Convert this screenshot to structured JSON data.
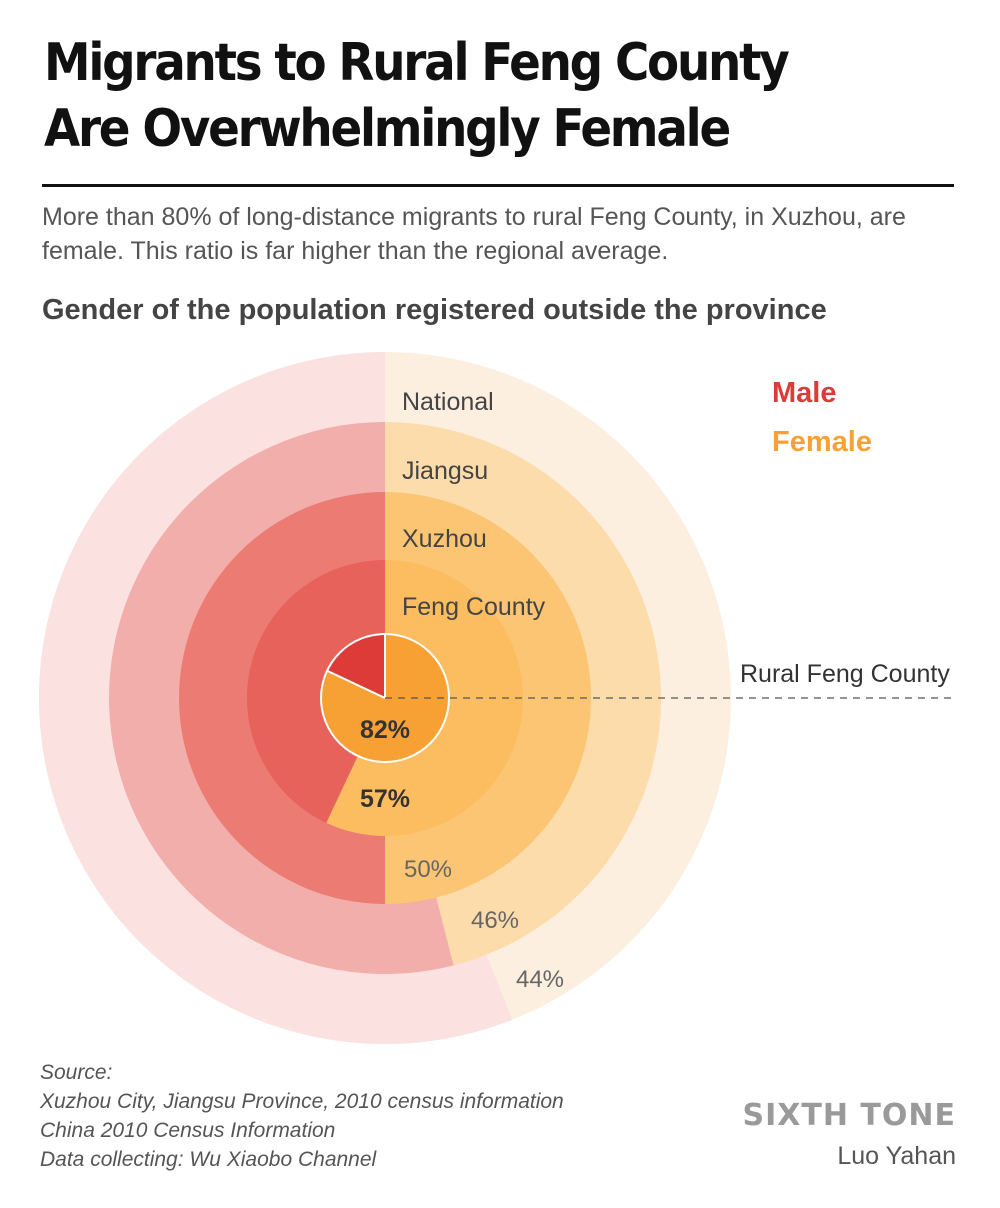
{
  "header": {
    "title_line1": "Migrants to Rural Feng County",
    "title_line2": "Are Overwhelmingly Female",
    "subtitle": "More than 80% of long-distance migrants to rural Feng County, in Xuzhou, are female. This ratio is far higher than the regional average.",
    "chart_heading": "Gender of the population registered outside the province"
  },
  "chart_data": {
    "type": "pie",
    "title": "Gender of the population registered outside the province",
    "legend": {
      "position": "top-right",
      "entries": [
        {
          "name": "Male",
          "color": "#dc3b37"
        },
        {
          "name": "Female",
          "color": "#f7a134"
        }
      ]
    },
    "rings": [
      {
        "label": "National",
        "female_pct": 44,
        "value_label": "44%",
        "male_color": "#fbe1df",
        "female_color": "#fdefdf"
      },
      {
        "label": "Jiangsu",
        "female_pct": 46,
        "value_label": "46%",
        "male_color": "#f2aeab",
        "female_color": "#fddcac"
      },
      {
        "label": "Xuzhou",
        "female_pct": 50,
        "value_label": "50%",
        "male_color": "#ec7b74",
        "female_color": "#fcc573"
      },
      {
        "label": "Feng County",
        "female_pct": 57,
        "value_label": "57%",
        "male_color": "#e6625a",
        "female_color": "#fbbd60"
      },
      {
        "label": "Rural Feng County",
        "female_pct": 82,
        "value_label": "82%",
        "male_color": "#dc3b37",
        "female_color": "#f7a134"
      }
    ]
  },
  "footer": {
    "source_label": "Source:",
    "source_line1": "Xuzhou City, Jiangsu Province, 2010 census information",
    "source_line2": "China 2010 Census Information",
    "source_line3": "Data collecting: Wu Xiaobo Channel",
    "brand": "SIXTH TONE",
    "author": "Luo Yahan"
  }
}
